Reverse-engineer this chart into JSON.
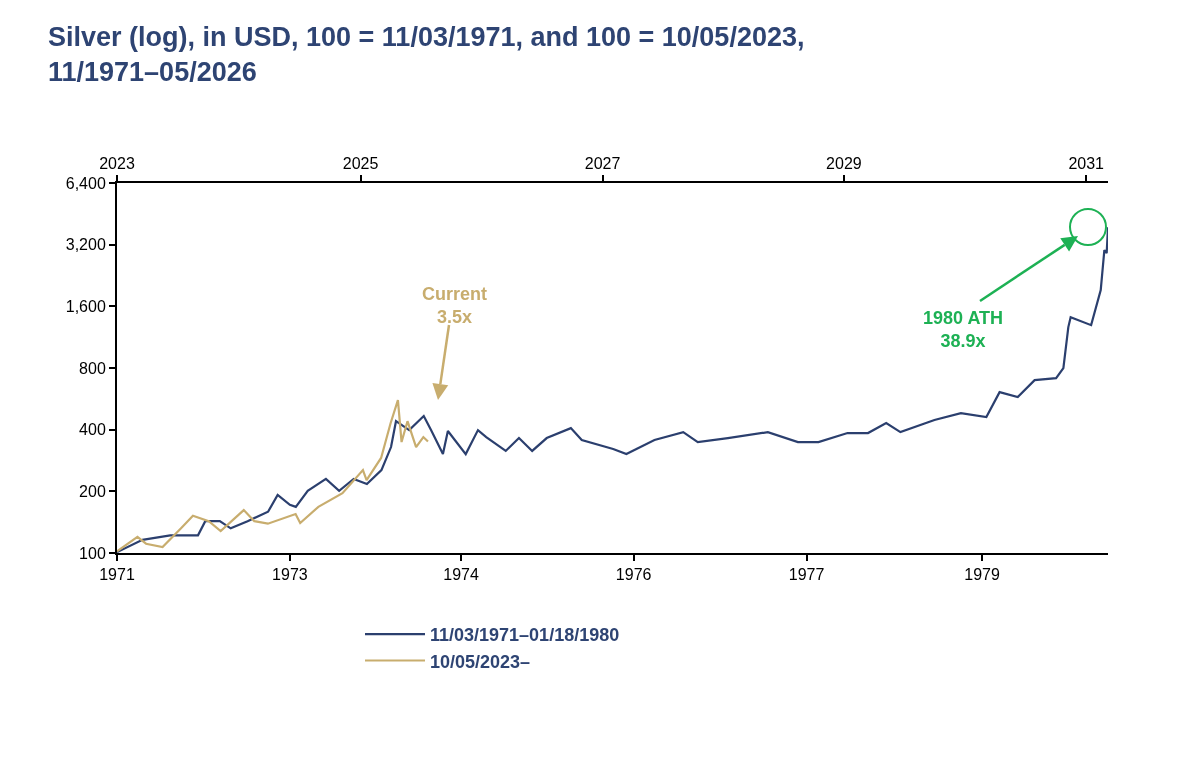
{
  "chart_data": {
    "type": "line",
    "title": "Silver (log), in USD, 100 = 11/03/1971, and 100 = 10/05/2023,\n11/1971–05/2026",
    "log": "y",
    "grid": false,
    "legend": "bottom",
    "line_style": "solid",
    "marker": "none",
    "xlim": [
      "1971-11-03",
      "1980-01-18"
    ],
    "xticks": [
      {
        "value": "1971-11-03",
        "label": "1971"
      },
      {
        "value": "1973-04-09",
        "label": "1973"
      },
      {
        "value": "1974-09-09",
        "label": "1974"
      },
      {
        "value": "1976-02-13",
        "label": "1976"
      },
      {
        "value": "1977-07-20",
        "label": "1977"
      },
      {
        "value": "1979-01-02",
        "label": "1979"
      }
    ],
    "x2lim": [
      "2023-10-05",
      "2031-12-24"
    ],
    "x2ticks": [
      {
        "value": "2023-10-05",
        "label": "2023"
      },
      {
        "value": "2025-10-12",
        "label": "2025"
      },
      {
        "value": "2027-10-15",
        "label": "2027"
      },
      {
        "value": "2029-10-15",
        "label": "2029"
      },
      {
        "value": "2031-10-19",
        "label": "2031"
      }
    ],
    "ylim": [
      100,
      6400
    ],
    "yticks": [
      100,
      200,
      400,
      800,
      {
        "value": 1600,
        "label": "1,600"
      },
      {
        "value": 3200,
        "label": "3,200"
      },
      {
        "value": 6400,
        "label": "6,400"
      }
    ],
    "series": [
      {
        "name": "11/03/1971–01/18/1980",
        "color": "#2b3f6e",
        "x": [
          "1971-11-03",
          "1972-01-19",
          "1972-04-12",
          "1972-07-05",
          "1972-07-27",
          "1972-09-09",
          "1972-10-12",
          "1972-12-02",
          "1973-02-02",
          "1973-03-03",
          "1973-04-09",
          "1973-04-27",
          "1973-06-02",
          "1973-07-27",
          "1973-09-05",
          "1973-10-19",
          "1973-11-28",
          "1974-01-11",
          "1974-02-09",
          "1974-02-24",
          "1974-04-05",
          "1974-05-19",
          "1974-06-10",
          "1974-07-16",
          "1974-07-31",
          "1974-09-23",
          "1974-10-30",
          "1974-11-24",
          "1975-01-22",
          "1975-03-03",
          "1975-04-12",
          "1975-05-26",
          "1975-08-07",
          "1975-09-09",
          "1975-12-13",
          "1976-01-22",
          "1976-04-16",
          "1976-07-12",
          "1976-08-25",
          "1976-11-24",
          "1977-03-25",
          "1977-06-24",
          "1977-08-25",
          "1977-11-21",
          "1978-01-22",
          "1978-03-18",
          "1978-04-30",
          "1978-08-11",
          "1978-10-30",
          "1979-01-15",
          "1979-02-24",
          "1979-04-20",
          "1979-06-10",
          "1979-08-14",
          "1979-09-05",
          "1979-09-20",
          "1979-09-27",
          "1979-11-28",
          "1979-12-27",
          "1980-01-07",
          "1980-01-14",
          "1980-01-18"
        ],
        "values": [
          101,
          116,
          122,
          122,
          143,
          143,
          132,
          143,
          159,
          192,
          172,
          168,
          201,
          230,
          201,
          230,
          217,
          254,
          329,
          440,
          398,
          466,
          398,
          304,
          394,
          304,
          398,
          368,
          315,
          364,
          315,
          364,
          407,
          356,
          322,
          304,
          356,
          389,
          348,
          364,
          389,
          348,
          348,
          385,
          385,
          431,
          389,
          446,
          482,
          461,
          610,
          577,
          698,
          714,
          799,
          1267,
          1417,
          1295,
          1920,
          3010,
          2910,
          3890
        ]
      },
      {
        "name": "10/05/2023–",
        "color": "#c8ad6e",
        "axis": "x2",
        "x": [
          "2023-10-05",
          "2023-12-06",
          "2024-01-01",
          "2024-02-20",
          "2024-04-16",
          "2024-05-22",
          "2024-07-09",
          "2024-08-14",
          "2024-10-23",
          "2024-11-24",
          "2025-01-04",
          "2025-03-29",
          "2025-04-12",
          "2025-06-06",
          "2025-08-18",
          "2025-10-19",
          "2025-10-30",
          "2025-12-13",
          "2026-01-11",
          "2026-02-02",
          "2026-02-13",
          "2026-03-03",
          "2026-03-29",
          "2026-04-20",
          "2026-05-04"
        ],
        "values": [
          102,
          120,
          111,
          107,
          132,
          152,
          143,
          128,
          162,
          143,
          139,
          155,
          140,
          168,
          196,
          254,
          227,
          291,
          431,
          558,
          348,
          440,
          329,
          368,
          350
        ]
      }
    ],
    "annotations": [
      "Current\n3.5x",
      "1980 ATH\n38.9x"
    ]
  }
}
